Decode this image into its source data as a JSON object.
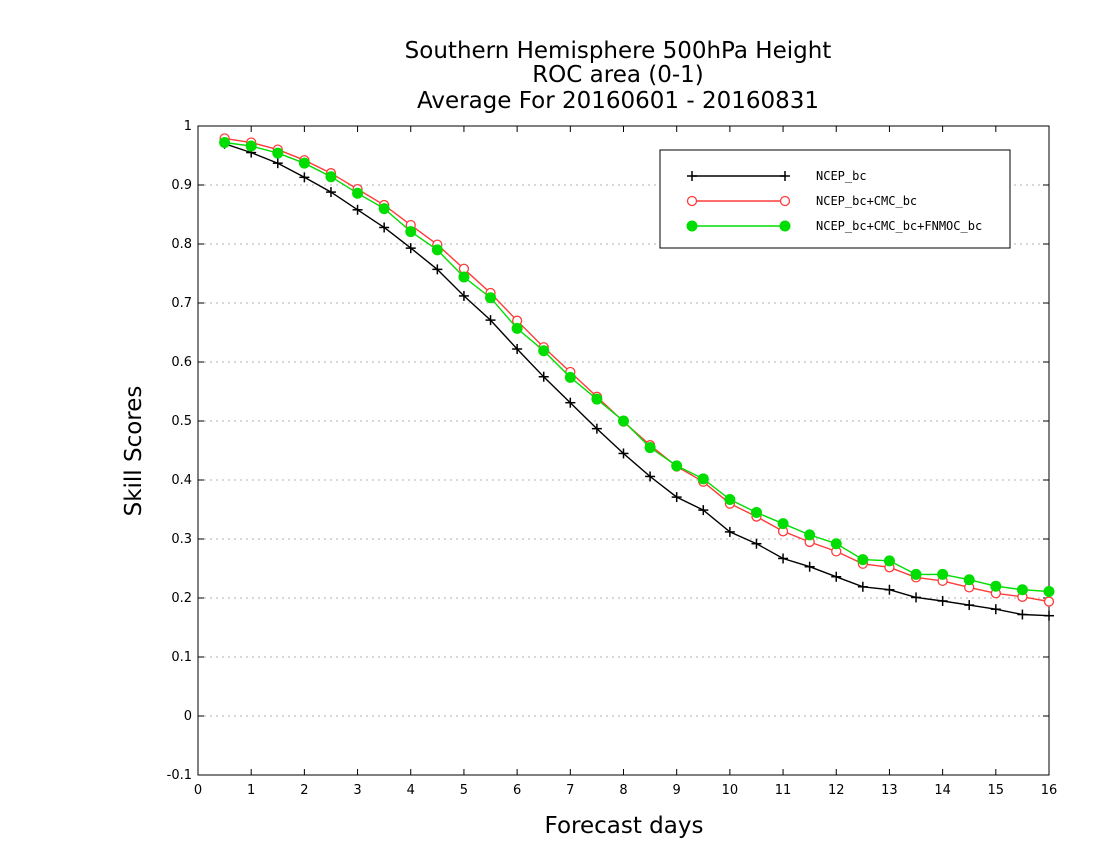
{
  "chart_data": {
    "type": "line",
    "title_lines": [
      "Southern Hemisphere 500hPa Height",
      "ROC area (0-1)",
      "Average For 20160601 - 20160831"
    ],
    "xlabel": "Forecast days",
    "ylabel": "Skill Scores",
    "xlim": [
      0,
      16
    ],
    "ylim": [
      -0.1,
      1
    ],
    "xticks": [
      0,
      1,
      2,
      3,
      4,
      5,
      6,
      7,
      8,
      9,
      10,
      11,
      12,
      13,
      14,
      15,
      16
    ],
    "yticks": [
      -0.1,
      0,
      0.1,
      0.2,
      0.3,
      0.4,
      0.5,
      0.6,
      0.7,
      0.8,
      0.9,
      1
    ],
    "ytick_labels": [
      "-0.1",
      "0",
      "0.1",
      "0.2",
      "0.3",
      "0.4",
      "0.5",
      "0.6",
      "0.7",
      "0.8",
      "0.9",
      "1"
    ],
    "grid": "horizontal-dotted",
    "legend_position": "top-right",
    "x": [
      0.5,
      1,
      1.5,
      2,
      2.5,
      3,
      3.5,
      4,
      4.5,
      5,
      5.5,
      6,
      6.5,
      7,
      7.5,
      8,
      8.5,
      9,
      9.5,
      10,
      10.5,
      11,
      11.5,
      12,
      12.5,
      13,
      13.5,
      14,
      14.5,
      15,
      15.5,
      16
    ],
    "series": [
      {
        "name": "NCEP_bc",
        "color": "#000000",
        "marker": "plus",
        "values": [
          0.97,
          0.955,
          0.937,
          0.913,
          0.888,
          0.858,
          0.828,
          0.793,
          0.757,
          0.712,
          0.671,
          0.622,
          0.575,
          0.531,
          0.487,
          0.445,
          0.406,
          0.371,
          0.349,
          0.312,
          0.292,
          0.267,
          0.253,
          0.236,
          0.219,
          0.214,
          0.201,
          0.195,
          0.188,
          0.181,
          0.172,
          0.17
        ]
      },
      {
        "name": "NCEP_bc+CMC_bc",
        "color": "#ff3b3b",
        "marker": "open-circle",
        "values": [
          0.979,
          0.972,
          0.96,
          0.942,
          0.92,
          0.893,
          0.866,
          0.832,
          0.799,
          0.758,
          0.717,
          0.67,
          0.625,
          0.583,
          0.541,
          0.499,
          0.459,
          0.423,
          0.397,
          0.36,
          0.338,
          0.313,
          0.295,
          0.279,
          0.258,
          0.252,
          0.235,
          0.229,
          0.218,
          0.208,
          0.202,
          0.194
        ]
      },
      {
        "name": "NCEP_bc+CMC_bc+FNMOC_bc",
        "color": "#00dd00",
        "marker": "filled-circle",
        "values": [
          0.972,
          0.966,
          0.954,
          0.937,
          0.914,
          0.886,
          0.86,
          0.821,
          0.79,
          0.744,
          0.709,
          0.657,
          0.619,
          0.574,
          0.537,
          0.5,
          0.455,
          0.424,
          0.402,
          0.367,
          0.345,
          0.326,
          0.307,
          0.292,
          0.265,
          0.263,
          0.24,
          0.24,
          0.231,
          0.22,
          0.214,
          0.211
        ]
      }
    ]
  }
}
